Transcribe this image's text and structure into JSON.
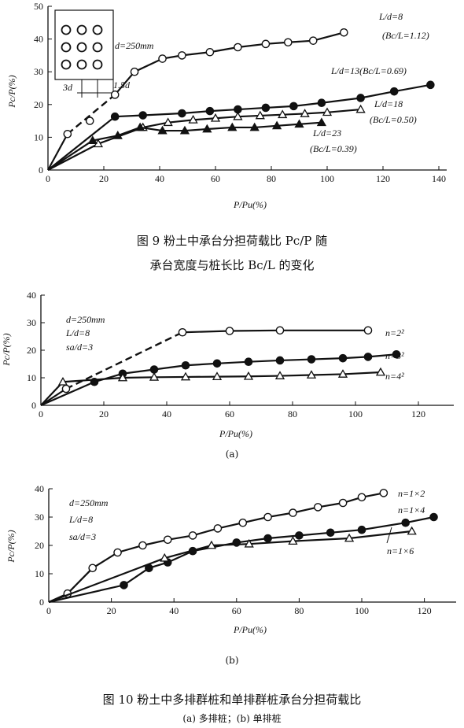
{
  "figure9": {
    "caption_line1": "图 9   粉土中承台分担荷载比 Pc/P 随",
    "caption_line2": "承台宽度与桩长比 Bc/L 的变化"
  },
  "figure10": {
    "caption_main": "图 10   粉土中多排群桩和单排群桩承台分担荷载比",
    "caption_sub": "(a) 多排桩；(b) 单排桩",
    "label_a": "(a)",
    "label_b": "(b)"
  },
  "chart_data": [
    {
      "id": "fig9",
      "type": "line",
      "xlabel": "P/Pu(%)",
      "ylabel": "Pc/P(%)",
      "xlim": [
        0,
        140
      ],
      "ylim": [
        0,
        50
      ],
      "xticks": [
        0,
        20,
        40,
        60,
        80,
        100,
        120,
        140
      ],
      "yticks": [
        0,
        10,
        20,
        30,
        40,
        50
      ],
      "annotations": {
        "d_label": "d=250mm",
        "spacing_3d": "3d",
        "spacing_15d": "1.5d"
      },
      "series": [
        {
          "name": "L/d=8 (Bc/L=1.12)",
          "label_line1": "L/d=8",
          "label_line2": "(Bc/L=1.12)",
          "marker": "open-circle",
          "x": [
            0,
            7,
            15,
            24,
            31,
            41,
            48,
            58,
            68,
            78,
            86,
            95,
            106
          ],
          "y": [
            0,
            11,
            15,
            23,
            30,
            34,
            35,
            36,
            37.5,
            38.5,
            39,
            39.5,
            42
          ],
          "dashed_segment": [
            [
              7,
              11
            ],
            [
              24,
              23
            ]
          ]
        },
        {
          "name": "L/d=13(Bc/L=0.69)",
          "label_line1": "L/d=13(Bc/L=0.69)",
          "marker": "filled-circle",
          "x": [
            0,
            24,
            34,
            48,
            58,
            68,
            78,
            88,
            98,
            112,
            124,
            137
          ],
          "y": [
            0,
            16.3,
            16.7,
            17.3,
            18,
            18.5,
            19,
            19.5,
            20.5,
            22,
            24,
            26
          ]
        },
        {
          "name": "L/d=18 (Bc/L=0.50)",
          "label_line1": "L/d=18",
          "label_line2": "(Bc/L=0.50)",
          "marker": "open-triangle",
          "x": [
            0,
            18,
            34,
            43,
            52,
            60,
            68,
            76,
            84,
            92,
            100,
            112
          ],
          "y": [
            0,
            8,
            13,
            14.5,
            15.3,
            15.8,
            16.3,
            16.6,
            16.9,
            17.2,
            17.6,
            18.5
          ]
        },
        {
          "name": "L/d=23 (Bc/L=0.39)",
          "label_line1": "L/d=23",
          "label_line2": "(Bc/L=0.39)",
          "marker": "filled-triangle",
          "x": [
            0,
            16,
            25,
            33,
            41,
            49,
            57,
            66,
            74,
            82,
            90,
            98
          ],
          "y": [
            0,
            9,
            10.5,
            13,
            12,
            12,
            12.5,
            13,
            13,
            13.5,
            14,
            14.5
          ]
        }
      ]
    },
    {
      "id": "fig10a",
      "type": "line",
      "xlabel": "P/Pu(%)",
      "ylabel": "Pc/P(%)",
      "xlim": [
        0,
        130
      ],
      "ylim": [
        0,
        40
      ],
      "xticks": [
        0,
        20,
        40,
        60,
        80,
        100,
        120
      ],
      "yticks": [
        0,
        10,
        20,
        30,
        40
      ],
      "annotations": {
        "line1": "d=250mm",
        "line2": "L/d=8",
        "line3": "sa/d=3"
      },
      "series": [
        {
          "name": "n=2²",
          "marker": "open-circle",
          "x": [
            0,
            8,
            45,
            60,
            76,
            104
          ],
          "y": [
            0,
            6,
            26.5,
            27,
            27.2,
            27.2
          ],
          "dashed_segment": [
            [
              8,
              6
            ],
            [
              45,
              26.5
            ]
          ]
        },
        {
          "name": "n=3²",
          "marker": "filled-circle",
          "x": [
            0,
            17,
            26,
            36,
            46,
            56,
            66,
            76,
            86,
            96,
            104,
            113
          ],
          "y": [
            0,
            8.5,
            11.5,
            13,
            14.5,
            15.2,
            15.8,
            16.3,
            16.7,
            17.1,
            17.6,
            18.5
          ]
        },
        {
          "name": "n=4²",
          "marker": "open-triangle",
          "x": [
            0,
            7,
            26,
            36,
            46,
            56,
            66,
            76,
            86,
            96,
            108
          ],
          "y": [
            0,
            8.5,
            10,
            10.2,
            10.3,
            10.4,
            10.5,
            10.7,
            11,
            11.3,
            12
          ]
        }
      ]
    },
    {
      "id": "fig10b",
      "type": "line",
      "xlabel": "P/Pu(%)",
      "ylabel": "Pc/P(%)",
      "xlim": [
        0,
        130
      ],
      "ylim": [
        0,
        40
      ],
      "xticks": [
        0,
        20,
        40,
        60,
        80,
        100,
        120
      ],
      "yticks": [
        0,
        10,
        20,
        30,
        40
      ],
      "annotations": {
        "line1": "d=250mm",
        "line2": "L/d=8",
        "line3": "sa/d=3"
      },
      "series": [
        {
          "name": "n=1×2",
          "marker": "open-circle",
          "x": [
            0,
            6,
            14,
            22,
            30,
            38,
            46,
            54,
            62,
            70,
            78,
            86,
            94,
            100,
            107
          ],
          "y": [
            0,
            3,
            12,
            17.5,
            20,
            22,
            23.5,
            26,
            28,
            30,
            31.5,
            33.5,
            35,
            37,
            38.5
          ]
        },
        {
          "name": "n=1×4",
          "marker": "filled-circle",
          "x": [
            0,
            24,
            32,
            38,
            46,
            60,
            70,
            80,
            90,
            100,
            114,
            123
          ],
          "y": [
            0,
            6,
            12,
            14,
            18,
            21,
            22.5,
            23.5,
            24.5,
            25.5,
            28,
            30
          ]
        },
        {
          "name": "n=1×6",
          "marker": "open-triangle",
          "x": [
            0,
            37,
            52,
            64,
            78,
            96,
            116
          ],
          "y": [
            0,
            15.5,
            20,
            20.5,
            21.5,
            22.5,
            25
          ]
        }
      ]
    }
  ]
}
